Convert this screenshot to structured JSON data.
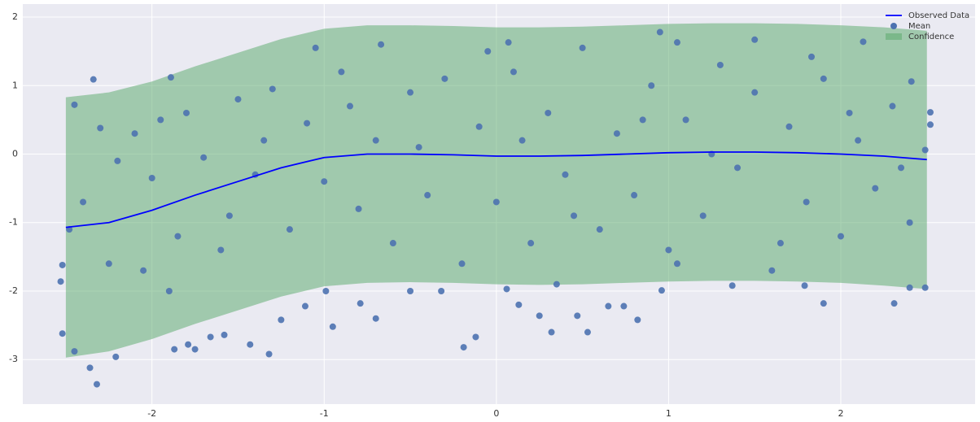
{
  "chart_data": {
    "type": "scatter",
    "xlim": [
      -2.75,
      2.78
    ],
    "ylim": [
      -3.65,
      2.19
    ],
    "xticks": [
      -2,
      -1,
      0,
      1,
      2
    ],
    "yticks": [
      -3,
      -2,
      -1,
      0,
      1,
      2
    ],
    "grid": true,
    "legend": "upper right",
    "series": [
      {
        "name": "Observed Data",
        "kind": "line",
        "color": "#0000ff",
        "x": [
          -2.5,
          -2.25,
          -2,
          -1.75,
          -1.5,
          -1.25,
          -1,
          -0.75,
          -0.5,
          -0.25,
          0,
          0.25,
          0.5,
          0.75,
          1,
          1.25,
          1.5,
          1.75,
          2,
          2.25,
          2.5
        ],
        "y": [
          -1.07,
          -1.0,
          -0.82,
          -0.6,
          -0.4,
          -0.2,
          -0.05,
          0,
          0,
          -0.01,
          -0.03,
          -0.03,
          -0.02,
          0,
          0.02,
          0.03,
          0.03,
          0.02,
          0,
          -0.03,
          -0.08
        ]
      },
      {
        "name": "Mean",
        "kind": "points",
        "color": "#4c72b0",
        "x": [
          -2.34,
          -1.89,
          -2.36,
          -2.32,
          -2.45,
          -2.52,
          -2.53,
          -2.52,
          -2.21,
          -1.87,
          -1.79,
          -1.75,
          -1.66,
          -1.58,
          -1.43,
          -1.32,
          -1.25,
          -1.11,
          -0.95,
          -0.99,
          -0.79,
          -0.7,
          -0.5,
          -0.32,
          -0.19,
          -0.12,
          0.06,
          0.13,
          0.25,
          0.32,
          0.47,
          0.53,
          0.65,
          0.74,
          0.82,
          0.96,
          1.37,
          1.79,
          1.9,
          2.31,
          2.4,
          2.49,
          -0.67,
          0.07,
          0.95,
          1.05,
          1.5,
          1.83,
          2.13,
          2.41,
          2.52,
          2.52,
          2.49,
          -2.45,
          -2.4,
          -2.3,
          -2.2,
          -2.1,
          -2.0,
          -1.95,
          -1.85,
          -1.8,
          -1.7,
          -1.6,
          -1.5,
          -1.4,
          -1.3,
          -1.2,
          -1.1,
          -1.0,
          -0.9,
          -0.8,
          -0.7,
          -0.6,
          -0.5,
          -0.4,
          -0.3,
          -0.2,
          -0.1,
          0.0,
          0.1,
          0.2,
          0.3,
          0.4,
          0.5,
          0.6,
          0.7,
          0.8,
          0.9,
          1.0,
          1.1,
          1.2,
          1.3,
          1.4,
          1.5,
          1.6,
          1.7,
          1.8,
          1.9,
          2.0,
          2.1,
          2.2,
          2.3,
          2.4,
          -2.48,
          -2.25,
          -1.9,
          -1.55,
          -1.35,
          -0.85,
          -0.45,
          0.15,
          0.45,
          0.85,
          1.25,
          1.65,
          2.05,
          2.35,
          -0.05,
          -1.05,
          -2.05,
          1.05,
          0.35
        ],
        "y": [
          1.09,
          1.12,
          -3.12,
          -3.36,
          -2.88,
          -2.62,
          -1.86,
          -1.62,
          -2.96,
          -2.85,
          -2.78,
          -2.85,
          -2.67,
          -2.64,
          -2.78,
          -2.92,
          -2.42,
          -2.22,
          -2.52,
          -2.0,
          -2.18,
          -2.4,
          -2.0,
          -2.0,
          -2.82,
          -2.67,
          -1.97,
          -2.2,
          -2.36,
          -2.6,
          -2.36,
          -2.6,
          -2.22,
          -2.22,
          -2.42,
          -1.99,
          -1.92,
          -1.92,
          -2.18,
          -2.18,
          -1.95,
          -1.95,
          1.6,
          1.63,
          1.78,
          1.63,
          1.67,
          1.42,
          1.64,
          1.06,
          0.61,
          0.43,
          0.06,
          0.72,
          -0.7,
          0.38,
          -0.1,
          0.3,
          -0.35,
          0.5,
          -1.2,
          0.6,
          -0.05,
          -1.4,
          0.8,
          -0.3,
          0.95,
          -1.1,
          0.45,
          -0.4,
          1.2,
          -0.8,
          0.2,
          -1.3,
          0.9,
          -0.6,
          1.1,
          -1.6,
          0.4,
          -0.7,
          1.2,
          -1.3,
          0.6,
          -0.3,
          1.55,
          -1.1,
          0.3,
          -0.6,
          1.0,
          -1.4,
          0.5,
          -0.9,
          1.3,
          -0.2,
          0.9,
          -1.7,
          0.4,
          -0.7,
          1.1,
          -1.2,
          0.2,
          -0.5,
          0.7,
          -1.0,
          -1.1,
          -1.6,
          -2.0,
          -0.9,
          0.2,
          0.7,
          0.1,
          0.2,
          -0.9,
          0.5,
          0.0,
          -1.3,
          0.6,
          -0.2,
          1.5,
          1.55,
          -1.7,
          -1.6,
          -1.9
        ]
      },
      {
        "name": "Confidence",
        "kind": "band",
        "color": "#55a868",
        "x": [
          -2.5,
          -2.25,
          -2,
          -1.75,
          -1.5,
          -1.25,
          -1,
          -0.75,
          -0.5,
          -0.25,
          0,
          0.25,
          0.5,
          0.75,
          1,
          1.25,
          1.5,
          1.75,
          2,
          2.25,
          2.5
        ],
        "lower": [
          -2.97,
          -2.88,
          -2.7,
          -2.48,
          -2.28,
          -2.08,
          -1.93,
          -1.88,
          -1.87,
          -1.88,
          -1.9,
          -1.91,
          -1.9,
          -1.88,
          -1.86,
          -1.85,
          -1.85,
          -1.86,
          -1.88,
          -1.92,
          -1.97
        ],
        "upper": [
          0.83,
          0.9,
          1.06,
          1.28,
          1.48,
          1.68,
          1.83,
          1.88,
          1.88,
          1.87,
          1.85,
          1.85,
          1.86,
          1.88,
          1.9,
          1.91,
          1.91,
          1.9,
          1.88,
          1.85,
          1.8
        ]
      }
    ]
  }
}
